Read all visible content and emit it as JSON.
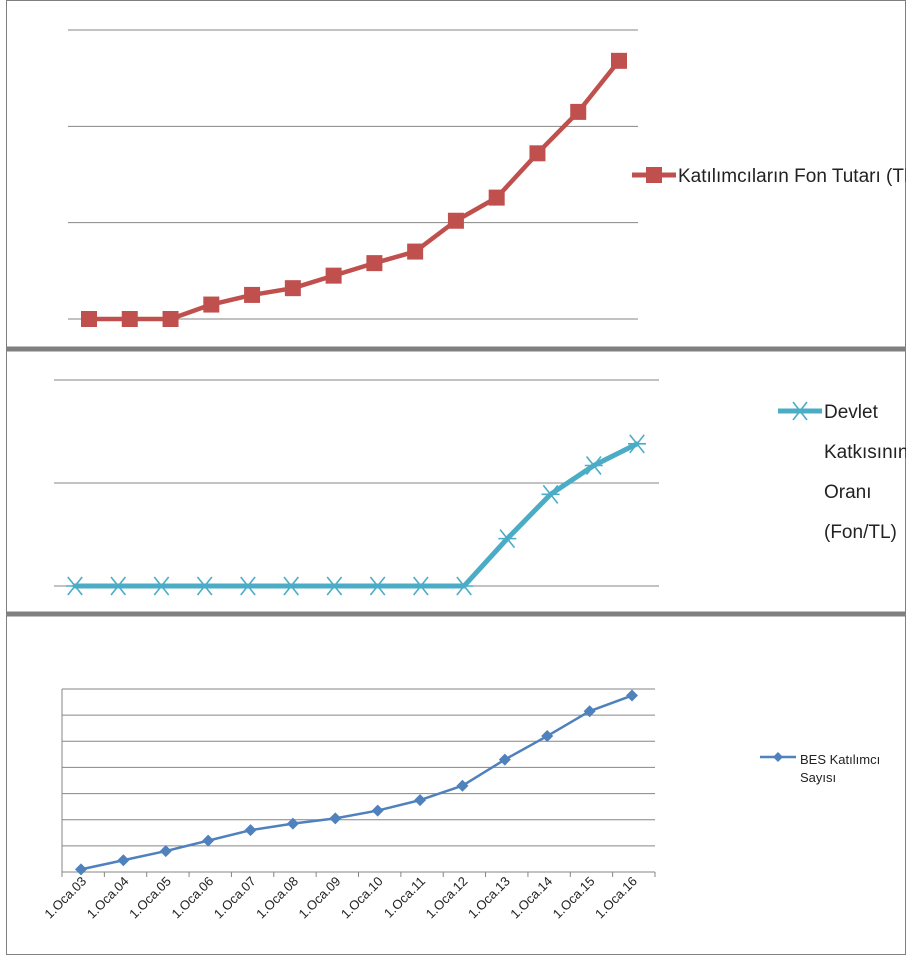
{
  "chart_data": [
    {
      "type": "line",
      "title": "",
      "series": [
        {
          "name": "Katılımcıların Fon Tutarı (TL)",
          "color": "#c0504d",
          "marker": "square",
          "values": [
            0,
            0,
            0,
            0.15,
            0.25,
            0.32,
            0.45,
            0.58,
            0.7,
            1.02,
            1.26,
            1.72,
            2.15,
            2.68
          ]
        }
      ],
      "ylim": [
        0,
        3
      ],
      "grid": true,
      "legend": "right"
    },
    {
      "type": "line",
      "title": "",
      "series": [
        {
          "name": "Devlet Katkısının Oranı (Fon/TL)",
          "legend_lines": [
            "Devlet",
            "Katkısının",
            "Oranı",
            "(Fon/TL)"
          ],
          "color": "#4bacc6",
          "marker": "star",
          "values": [
            0,
            0,
            0,
            0,
            0,
            0,
            0,
            0,
            0,
            0,
            0.46,
            0.89,
            1.17,
            1.38
          ]
        }
      ],
      "ylim": [
        0,
        2
      ],
      "grid": true,
      "legend": "right"
    },
    {
      "type": "line",
      "title": "",
      "categories": [
        "1.Oca.03",
        "1.Oca.04",
        "1.Oca.05",
        "1.Oca.06",
        "1.Oca.07",
        "1.Oca.08",
        "1.Oca.09",
        "1.Oca.10",
        "1.Oca.11",
        "1.Oca.12",
        "1.Oca.13",
        "1.Oca.14",
        "1.Oca.15",
        "1.Oca.16"
      ],
      "series": [
        {
          "name": "BES Katılımcı Sayısı",
          "legend_lines": [
            "BES Katılımcı",
            "Sayısı"
          ],
          "color": "#4f81bd",
          "marker": "diamond",
          "values": [
            0.1,
            0.45,
            0.8,
            1.2,
            1.6,
            1.85,
            2.05,
            2.35,
            2.75,
            3.3,
            4.3,
            5.2,
            6.15,
            6.75
          ]
        }
      ],
      "ylim": [
        0,
        7
      ],
      "grid": true,
      "legend": "right"
    }
  ]
}
